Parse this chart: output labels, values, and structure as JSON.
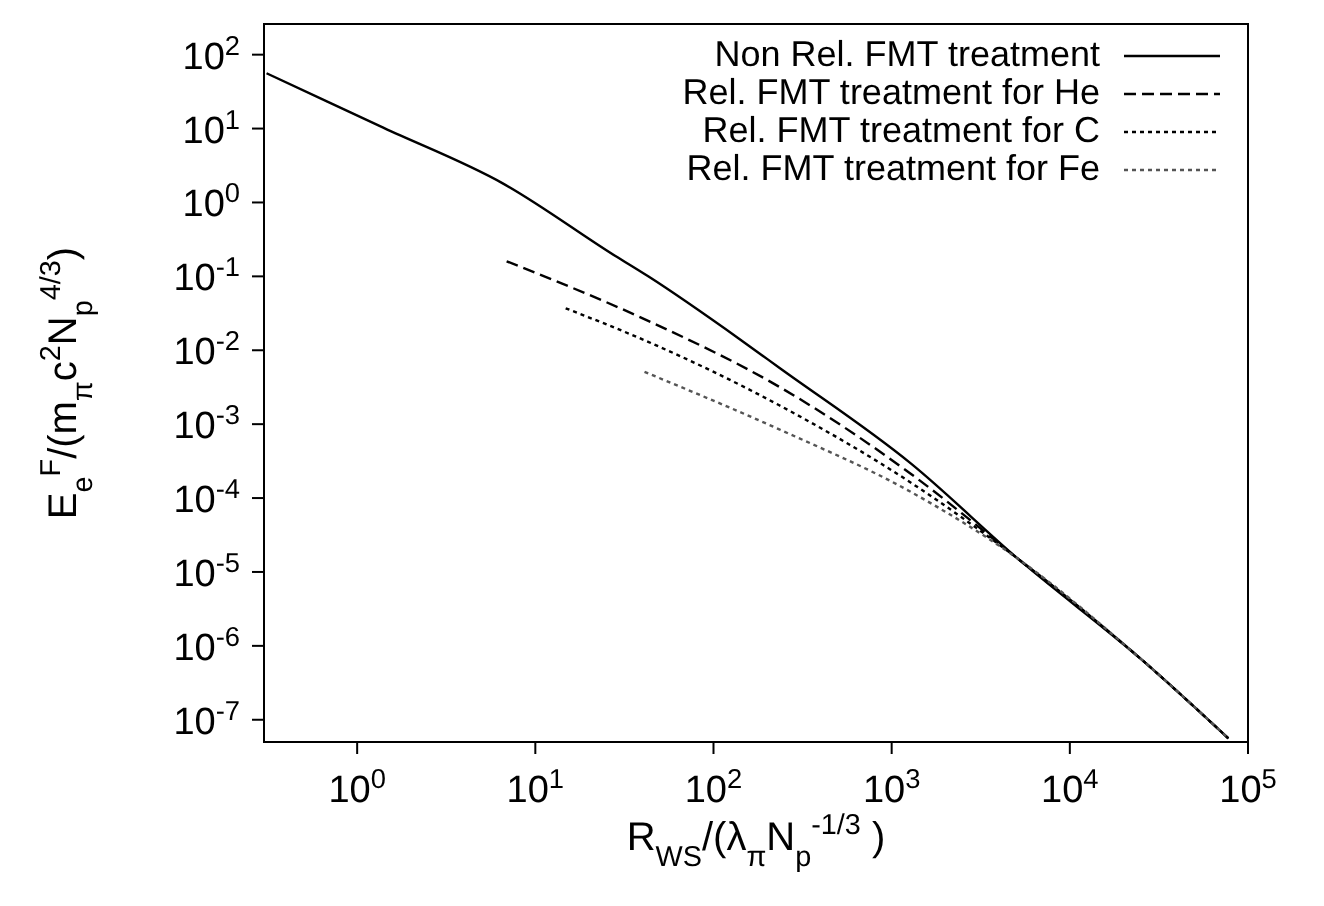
{
  "chart_data": {
    "type": "line",
    "xlabel": "R$_{WS}$/(λ$_{π}$N$_{p}$$^{-1/3}$ )",
    "ylabel": "E$_{e}$$^{F}$/(m$_{π}$c$^{2}$N$_{p}$$^{4/3}$)",
    "log": "xy",
    "xlim": [
      0.3,
      100000
    ],
    "ylim": [
      5e-08,
      260
    ],
    "xticks": [
      {
        "value": 1,
        "label": "10$^{0}$"
      },
      {
        "value": 10,
        "label": "10$^{1}$"
      },
      {
        "value": 100,
        "label": "10$^{2}$"
      },
      {
        "value": 1000,
        "label": "10$^{3}$"
      },
      {
        "value": 10000,
        "label": "10$^{4}$"
      },
      {
        "value": 100000,
        "label": "10$^{5}$"
      }
    ],
    "yticks": [
      {
        "value": 1e-07,
        "label": "10$^{-7}$"
      },
      {
        "value": 1e-06,
        "label": "10$^{-6}$"
      },
      {
        "value": 1e-05,
        "label": "10$^{-5}$"
      },
      {
        "value": 0.0001,
        "label": "10$^{-4}$"
      },
      {
        "value": 0.001,
        "label": "10$^{-3}$"
      },
      {
        "value": 0.01,
        "label": "10$^{-2}$"
      },
      {
        "value": 0.1,
        "label": "10$^{-1}$"
      },
      {
        "value": 1,
        "label": "10$^{0}$"
      },
      {
        "value": 10,
        "label": "10$^{1}$"
      },
      {
        "value": 100,
        "label": "10$^{2}$"
      }
    ],
    "grid": false,
    "legend": "top right",
    "marker": "none",
    "series": [
      {
        "name": "Non Rel. FMT treatment",
        "color": "#000000",
        "line_style": "solid",
        "x": [
          0.31,
          1.41,
          6.6,
          28,
          43,
          141,
          234,
          1290,
          5130,
          25700,
          77600
        ],
        "values": [
          56,
          10.2,
          1.8,
          0.19,
          0.1,
          0.014,
          0.0058,
          0.00029,
          1.5e-05,
          6.3e-07,
          5.6e-08
        ]
      },
      {
        "name": "Rel. FMT treatment for He",
        "color": "#000000",
        "line_style": "dashed",
        "x": [
          6.9,
          43,
          234,
          1290,
          5130,
          25700,
          77600
        ],
        "values": [
          0.16,
          0.025,
          0.0032,
          0.00021,
          1.5e-05,
          6.3e-07,
          5.6e-08
        ]
      },
      {
        "name": "Rel. FMT treatment for C",
        "color": "#000000",
        "line_style": "dotted",
        "x": [
          14.8,
          43,
          234,
          1290,
          5130,
          25700,
          77600
        ],
        "values": [
          0.037,
          0.013,
          0.0018,
          0.00016,
          1.5e-05,
          6.3e-07,
          5.6e-08
        ]
      },
      {
        "name": "Rel. FMT treatment for Fe",
        "color": "#555555",
        "line_style": "dotted",
        "x": [
          41,
          234,
          1290,
          5130,
          25700,
          77600
        ],
        "values": [
          0.0051,
          0.00085,
          0.00012,
          1.5e-05,
          6.3e-07,
          5.6e-08
        ]
      }
    ]
  }
}
